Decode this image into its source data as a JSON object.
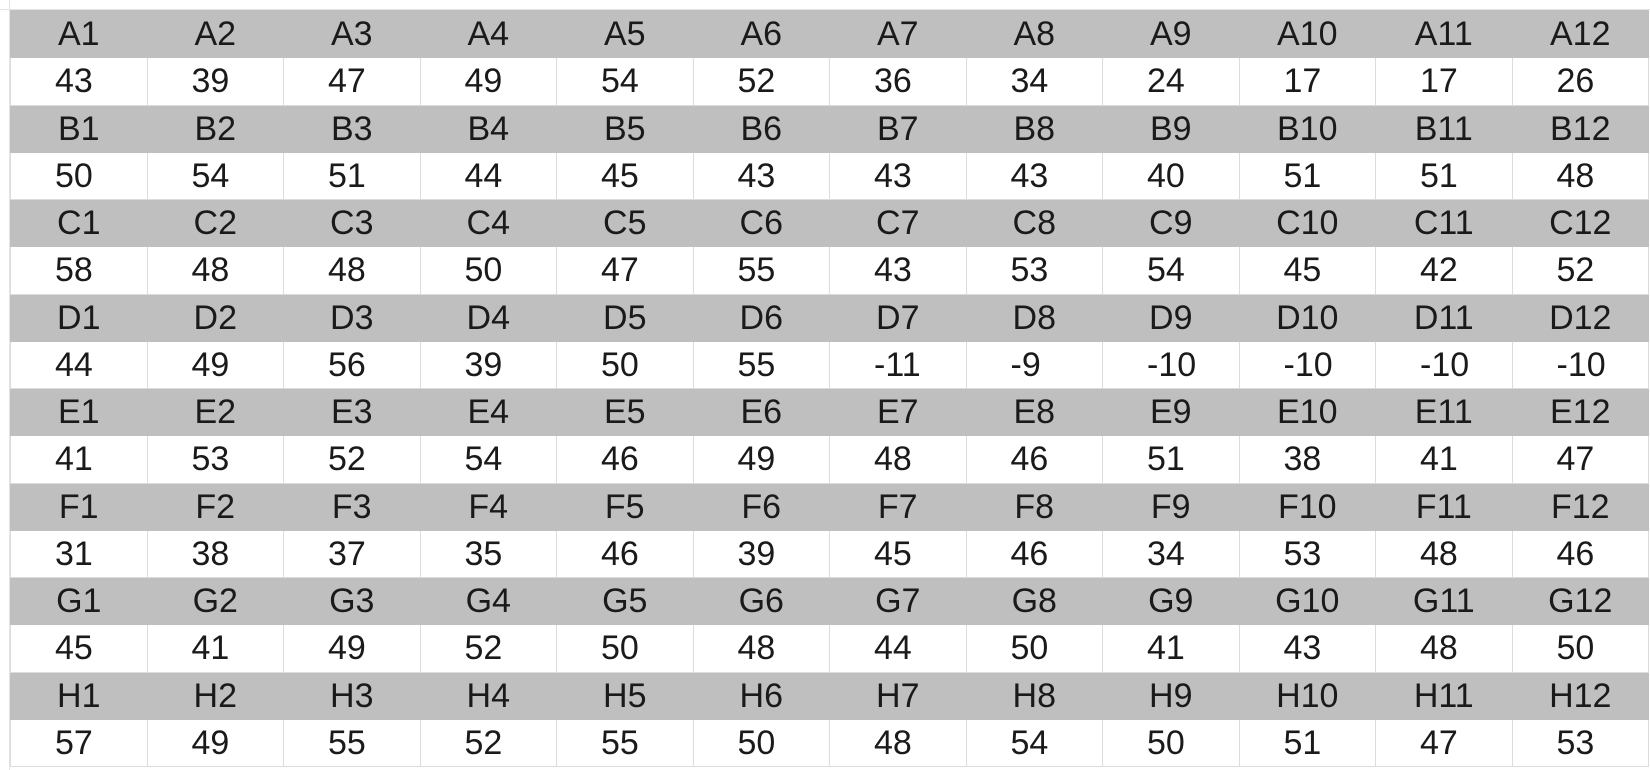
{
  "sheet": {
    "rows": [
      {
        "labels": [
          "A1",
          "A2",
          "A3",
          "A4",
          "A5",
          "A6",
          "A7",
          "A8",
          "A9",
          "A10",
          "A11",
          "A12"
        ],
        "values": [
          "43",
          "39",
          "47",
          "49",
          "54",
          "52",
          "36",
          "34",
          "24",
          "17",
          "17",
          "26"
        ]
      },
      {
        "labels": [
          "B1",
          "B2",
          "B3",
          "B4",
          "B5",
          "B6",
          "B7",
          "B8",
          "B9",
          "B10",
          "B11",
          "B12"
        ],
        "values": [
          "50",
          "54",
          "51",
          "44",
          "45",
          "43",
          "43",
          "43",
          "40",
          "51",
          "51",
          "48"
        ]
      },
      {
        "labels": [
          "C1",
          "C2",
          "C3",
          "C4",
          "C5",
          "C6",
          "C7",
          "C8",
          "C9",
          "C10",
          "C11",
          "C12"
        ],
        "values": [
          "58",
          "48",
          "48",
          "50",
          "47",
          "55",
          "43",
          "53",
          "54",
          "45",
          "42",
          "52"
        ]
      },
      {
        "labels": [
          "D1",
          "D2",
          "D3",
          "D4",
          "D5",
          "D6",
          "D7",
          "D8",
          "D9",
          "D10",
          "D11",
          "D12"
        ],
        "values": [
          "44",
          "49",
          "56",
          "39",
          "50",
          "55",
          "-11",
          "-9",
          "-10",
          "-10",
          "-10",
          "-10"
        ]
      },
      {
        "labels": [
          "E1",
          "E2",
          "E3",
          "E4",
          "E5",
          "E6",
          "E7",
          "E8",
          "E9",
          "E10",
          "E11",
          "E12"
        ],
        "values": [
          "41",
          "53",
          "52",
          "54",
          "46",
          "49",
          "48",
          "46",
          "51",
          "38",
          "41",
          "47"
        ]
      },
      {
        "labels": [
          "F1",
          "F2",
          "F3",
          "F4",
          "F5",
          "F6",
          "F7",
          "F8",
          "F9",
          "F10",
          "F11",
          "F12"
        ],
        "values": [
          "31",
          "38",
          "37",
          "35",
          "46",
          "39",
          "45",
          "46",
          "34",
          "53",
          "48",
          "46"
        ]
      },
      {
        "labels": [
          "G1",
          "G2",
          "G3",
          "G4",
          "G5",
          "G6",
          "G7",
          "G8",
          "G9",
          "G10",
          "G11",
          "G12"
        ],
        "values": [
          "45",
          "41",
          "49",
          "52",
          "50",
          "48",
          "44",
          "50",
          "41",
          "43",
          "48",
          "50"
        ]
      },
      {
        "labels": [
          "H1",
          "H2",
          "H3",
          "H4",
          "H5",
          "H6",
          "H7",
          "H8",
          "H9",
          "H10",
          "H11",
          "H12"
        ],
        "values": [
          "57",
          "49",
          "55",
          "52",
          "55",
          "50",
          "48",
          "54",
          "50",
          "51",
          "47",
          "53"
        ]
      }
    ],
    "colors": {
      "label_row_bg": "#bfbfbf",
      "value_row_bg": "#ffffff",
      "gridline": "#dcdcdc",
      "text": "#1a1a1a"
    }
  }
}
